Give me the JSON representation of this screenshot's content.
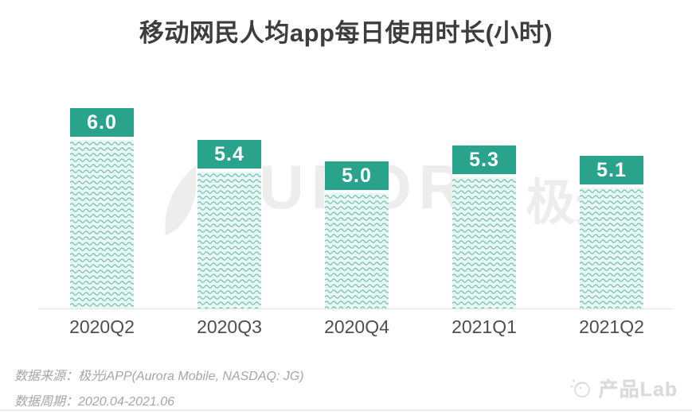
{
  "header": {
    "title": "移动网民人均app每日使用时长(小时)"
  },
  "chart_data": {
    "type": "bar",
    "title": "移动网民人均app每日使用时长(小时)",
    "unit": "小时",
    "categories": [
      "2020Q2",
      "2020Q3",
      "2020Q4",
      "2021Q1",
      "2021Q2"
    ],
    "values": [
      6.0,
      5.4,
      5.0,
      5.3,
      5.1
    ],
    "value_labels": [
      "6.0",
      "5.4",
      "5.0",
      "5.3",
      "5.1"
    ],
    "xlabel": "",
    "ylabel": "",
    "grid": "off",
    "legend": "none",
    "bar_color": "#2aa38c",
    "pattern_line_color": "#57b5a3",
    "pattern_bg_color": "#e9f8f4"
  },
  "watermark": {
    "icon": "aurora-swoosh-icon",
    "text": "AURORA",
    "text_cn": "极光"
  },
  "footer": {
    "source": "数据来源：极光iAPP(Aurora Mobile, NASDAQ: JG)",
    "period": "数据周期：2020.04-2021.06",
    "brand": "产品Lab"
  },
  "colors": {
    "title": "#3d3d3d",
    "axis_label": "#4e4e4e",
    "footer_text": "#a6a6a6",
    "watermark": "#ededed",
    "baseline": "#e4e4e4"
  }
}
